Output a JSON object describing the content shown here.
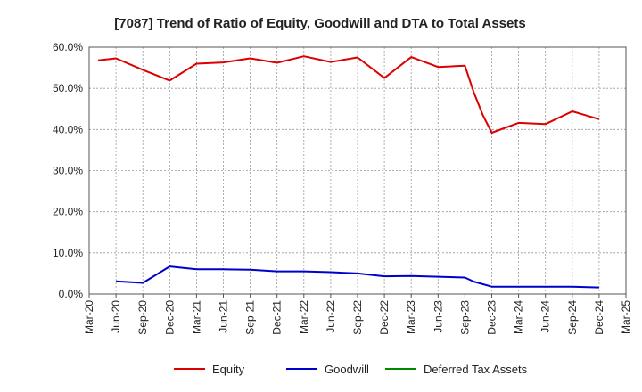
{
  "chart_data": {
    "type": "line",
    "title": "[7087]  Trend of Ratio of Equity, Goodwill and DTA to Total Assets",
    "xlabel": "",
    "ylabel": "",
    "x_ticks": [
      "Mar-20",
      "Jun-20",
      "Sep-20",
      "Dec-20",
      "Mar-21",
      "Jun-21",
      "Sep-21",
      "Dec-21",
      "Mar-22",
      "Jun-22",
      "Sep-22",
      "Dec-22",
      "Mar-23",
      "Jun-23",
      "Sep-23",
      "Dec-23",
      "Mar-24",
      "Jun-24",
      "Sep-24",
      "Dec-24",
      "Mar-25"
    ],
    "y_ticks": [
      "0.0%",
      "10.0%",
      "20.0%",
      "30.0%",
      "40.0%",
      "50.0%",
      "60.0%"
    ],
    "ylim": [
      0,
      60
    ],
    "grid": true,
    "legend_position": "bottom",
    "series": [
      {
        "name": "Equity",
        "color": "#dd0000",
        "points": [
          [
            "Apr-20",
            56.8
          ],
          [
            "Jun-20",
            57.3
          ],
          [
            "Sep-20",
            54.5
          ],
          [
            "Dec-20",
            51.9
          ],
          [
            "Mar-21",
            56.0
          ],
          [
            "Jun-21",
            56.3
          ],
          [
            "Sep-21",
            57.3
          ],
          [
            "Dec-21",
            56.2
          ],
          [
            "Mar-22",
            57.8
          ],
          [
            "Jun-22",
            56.4
          ],
          [
            "Sep-22",
            57.5
          ],
          [
            "Dec-22",
            52.5
          ],
          [
            "Mar-23",
            57.6
          ],
          [
            "Jun-23",
            55.2
          ],
          [
            "Sep-23",
            55.5
          ],
          [
            "Oct-23",
            49.0
          ],
          [
            "Nov-23",
            43.5
          ],
          [
            "Dec-23",
            39.2
          ],
          [
            "Mar-24",
            41.6
          ],
          [
            "Jun-24",
            41.3
          ],
          [
            "Sep-24",
            44.4
          ],
          [
            "Dec-24",
            42.5
          ]
        ]
      },
      {
        "name": "Goodwill",
        "color": "#0000cc",
        "points": [
          [
            "Jun-20",
            3.1
          ],
          [
            "Sep-20",
            2.7
          ],
          [
            "Dec-20",
            6.7
          ],
          [
            "Mar-21",
            6.0
          ],
          [
            "Jun-21",
            6.0
          ],
          [
            "Sep-21",
            5.9
          ],
          [
            "Dec-21",
            5.5
          ],
          [
            "Mar-22",
            5.5
          ],
          [
            "Jun-22",
            5.3
          ],
          [
            "Sep-22",
            5.0
          ],
          [
            "Dec-22",
            4.3
          ],
          [
            "Mar-23",
            4.4
          ],
          [
            "Jun-23",
            4.2
          ],
          [
            "Sep-23",
            4.0
          ],
          [
            "Oct-23",
            3.0
          ],
          [
            "Dec-23",
            1.8
          ],
          [
            "Mar-24",
            1.8
          ],
          [
            "Jun-24",
            1.8
          ],
          [
            "Sep-24",
            1.8
          ],
          [
            "Dec-24",
            1.6
          ]
        ]
      },
      {
        "name": "Deferred Tax Assets",
        "color": "#008800",
        "points": []
      }
    ]
  }
}
